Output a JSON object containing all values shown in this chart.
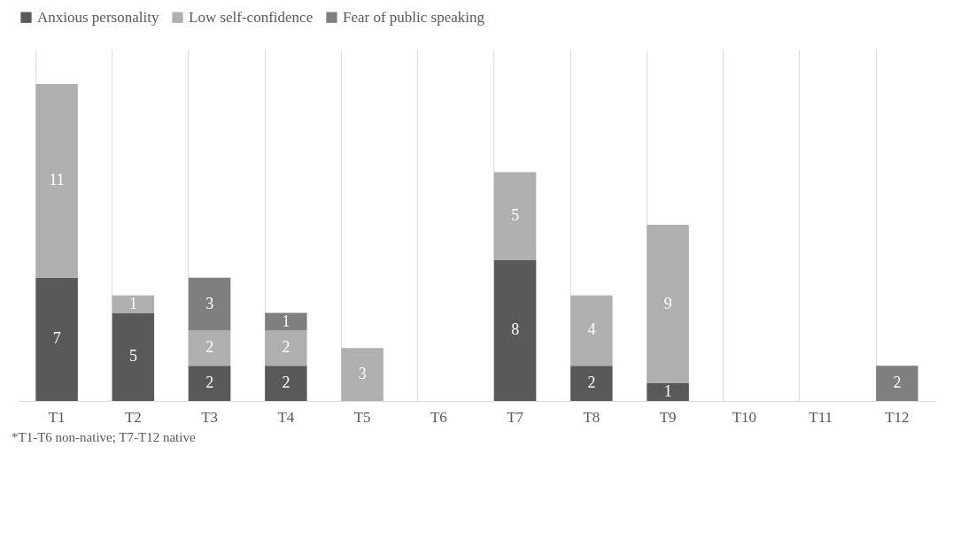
{
  "chart_data": {
    "type": "bar",
    "stacked": true,
    "categories": [
      "T1",
      "T2",
      "T3",
      "T4",
      "T5",
      "T6",
      "T7",
      "T8",
      "T9",
      "T10",
      "T11",
      "T12"
    ],
    "series": [
      {
        "name": "Anxious personality",
        "color": "#595959",
        "values": [
          7,
          5,
          2,
          2,
          null,
          null,
          8,
          2,
          1,
          null,
          null,
          null
        ]
      },
      {
        "name": "Low self-confidence",
        "color": "#afafaf",
        "values": [
          11,
          1,
          2,
          2,
          3,
          null,
          5,
          4,
          9,
          null,
          null,
          null
        ]
      },
      {
        "name": "Fear of public speaking",
        "color": "#7f7f7f",
        "values": [
          null,
          null,
          3,
          1,
          null,
          null,
          null,
          null,
          null,
          null,
          null,
          2
        ]
      }
    ],
    "data_labels": true,
    "grid": "x",
    "legend": "top",
    "annotations": [
      "*T1-T6 non-native; T7-T12 native"
    ]
  }
}
